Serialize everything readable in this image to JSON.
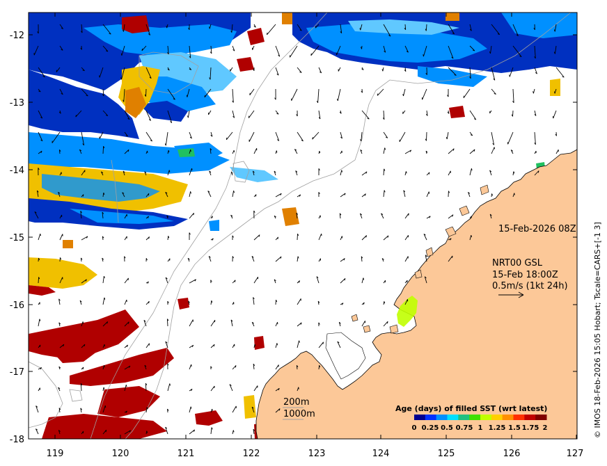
{
  "map": {
    "x_ticks": [
      "119",
      "120",
      "121",
      "122",
      "123",
      "124",
      "125",
      "126",
      "127"
    ],
    "y_ticks": [
      "-12",
      "-13",
      "-14",
      "-15",
      "-16",
      "-17",
      "-18"
    ],
    "lon_range": [
      118.6,
      127.0
    ],
    "lat_range": [
      -18.0,
      -11.75
    ]
  },
  "labels": {
    "timestamp": "15-Feb-2026 08Z",
    "product": "NRT00 GSL",
    "current_time": "15-Feb 18:00Z",
    "scale_ref": "0.5m/s (1kt 24h)",
    "isobath_200": "200m",
    "isobath_1000": "1000m",
    "side_credit": "© IMOS 18-Feb-2026 15:05 Hobart; Tscale=CARS+[-1 3]"
  },
  "colorbar": {
    "title": "Age (days) of filled SST (wrt latest)",
    "ticks": [
      "0",
      "0.25",
      "0.5",
      "0.75",
      "1",
      "1.25",
      "1.5",
      "1.75",
      "2"
    ],
    "colors": [
      "#00008f",
      "#0030ff",
      "#0090ff",
      "#00e0ff",
      "#20c080",
      "#40e000",
      "#c0ff00",
      "#ffd000",
      "#ff9000",
      "#ff3000",
      "#c00000",
      "#800000"
    ]
  },
  "colors": {
    "land": "#fcc898",
    "ocean": "#ffffff",
    "isobath": "#a0a0a0",
    "age_0": "#0030c0",
    "age_025": "#0090ff",
    "age_05": "#60c8ff",
    "age_15": "#f0c000",
    "age_175": "#e08000",
    "age_2": "#b00000",
    "green": "#20c060"
  }
}
